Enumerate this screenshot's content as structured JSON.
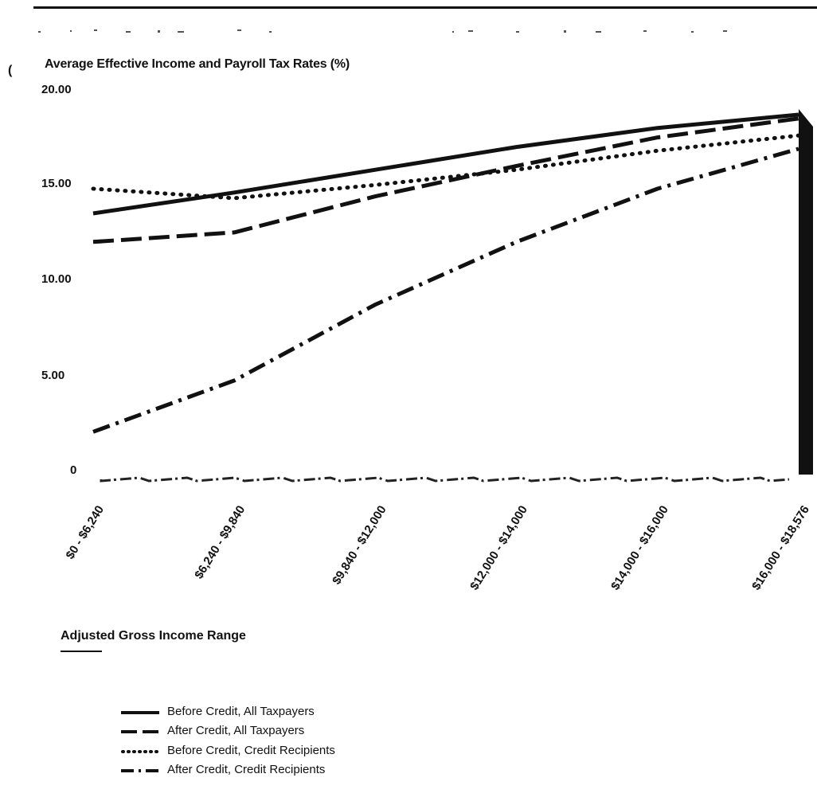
{
  "chart_data": {
    "type": "line",
    "title": "",
    "ylabel": "Average Effective Income and Payroll Tax Rates (%)",
    "xlabel": "Adjusted Gross Income Range",
    "ylim": [
      0,
      20
    ],
    "yticks": [
      "20.00",
      "15.00",
      "10.00",
      "5.00",
      "0"
    ],
    "categories": [
      "$0 - $6,240",
      "$6,240 - $9,840",
      "$9,840 - $12,000",
      "$12,000 - $14,000",
      "$14,000 - $16,000",
      "$16,000 - $18,576"
    ],
    "series": [
      {
        "name": "Before Credit, All Taxpayers",
        "style": "solid",
        "values": [
          13.5,
          14.6,
          15.8,
          17.0,
          18.0,
          18.7
        ]
      },
      {
        "name": "After Credit, All Taxpayers",
        "style": "dashed",
        "values": [
          12.0,
          12.5,
          14.4,
          16.0,
          17.5,
          18.5
        ]
      },
      {
        "name": "Before Credit, Credit Recipients",
        "style": "dotted",
        "values": [
          14.8,
          14.3,
          15.0,
          15.8,
          16.8,
          17.6
        ]
      },
      {
        "name": "After Credit, Credit Recipients",
        "style": "dashdot",
        "values": [
          2.0,
          4.7,
          8.7,
          12.0,
          14.8,
          16.9
        ]
      }
    ],
    "grid": false,
    "legend_placement": "bottom-left",
    "colors": {
      "line": "#111111",
      "background": "#ffffff"
    }
  }
}
